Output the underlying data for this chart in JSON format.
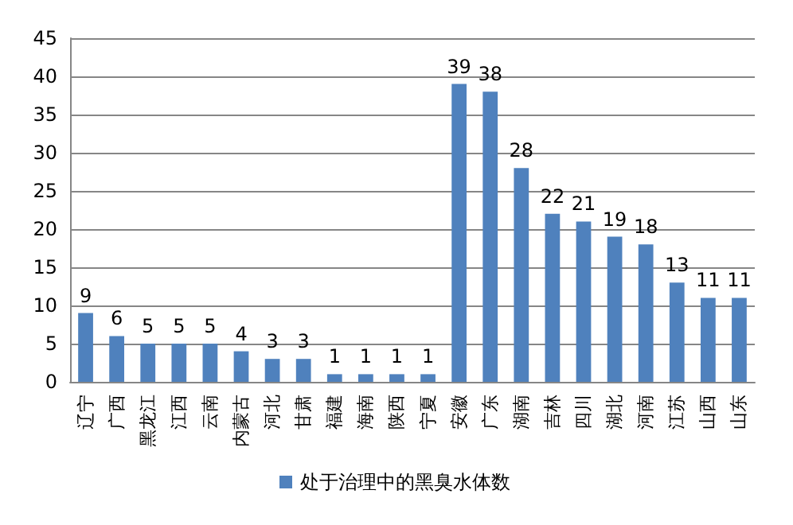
{
  "chart_data": {
    "type": "bar",
    "categories": [
      "辽宁",
      "广西",
      "黑龙江",
      "江西",
      "云南",
      "内蒙古",
      "河北",
      "甘肃",
      "福建",
      "海南",
      "陕西",
      "宁夏",
      "安徽",
      "广东",
      "湖南",
      "吉林",
      "四川",
      "湖北",
      "河南",
      "江苏",
      "山西",
      "山东"
    ],
    "series": [
      {
        "name": "处于治理中的黑臭水体数",
        "color": "#4f81bd",
        "values": [
          9,
          6,
          5,
          5,
          5,
          4,
          3,
          3,
          1,
          1,
          1,
          1,
          39,
          38,
          28,
          22,
          21,
          19,
          18,
          13,
          11,
          11
        ]
      }
    ],
    "ylim": [
      0,
      45
    ],
    "yticks": [
      0,
      5,
      10,
      15,
      20,
      25,
      30,
      35,
      40,
      45
    ],
    "grid": "y",
    "legend": "bottom",
    "data_labels": true
  }
}
